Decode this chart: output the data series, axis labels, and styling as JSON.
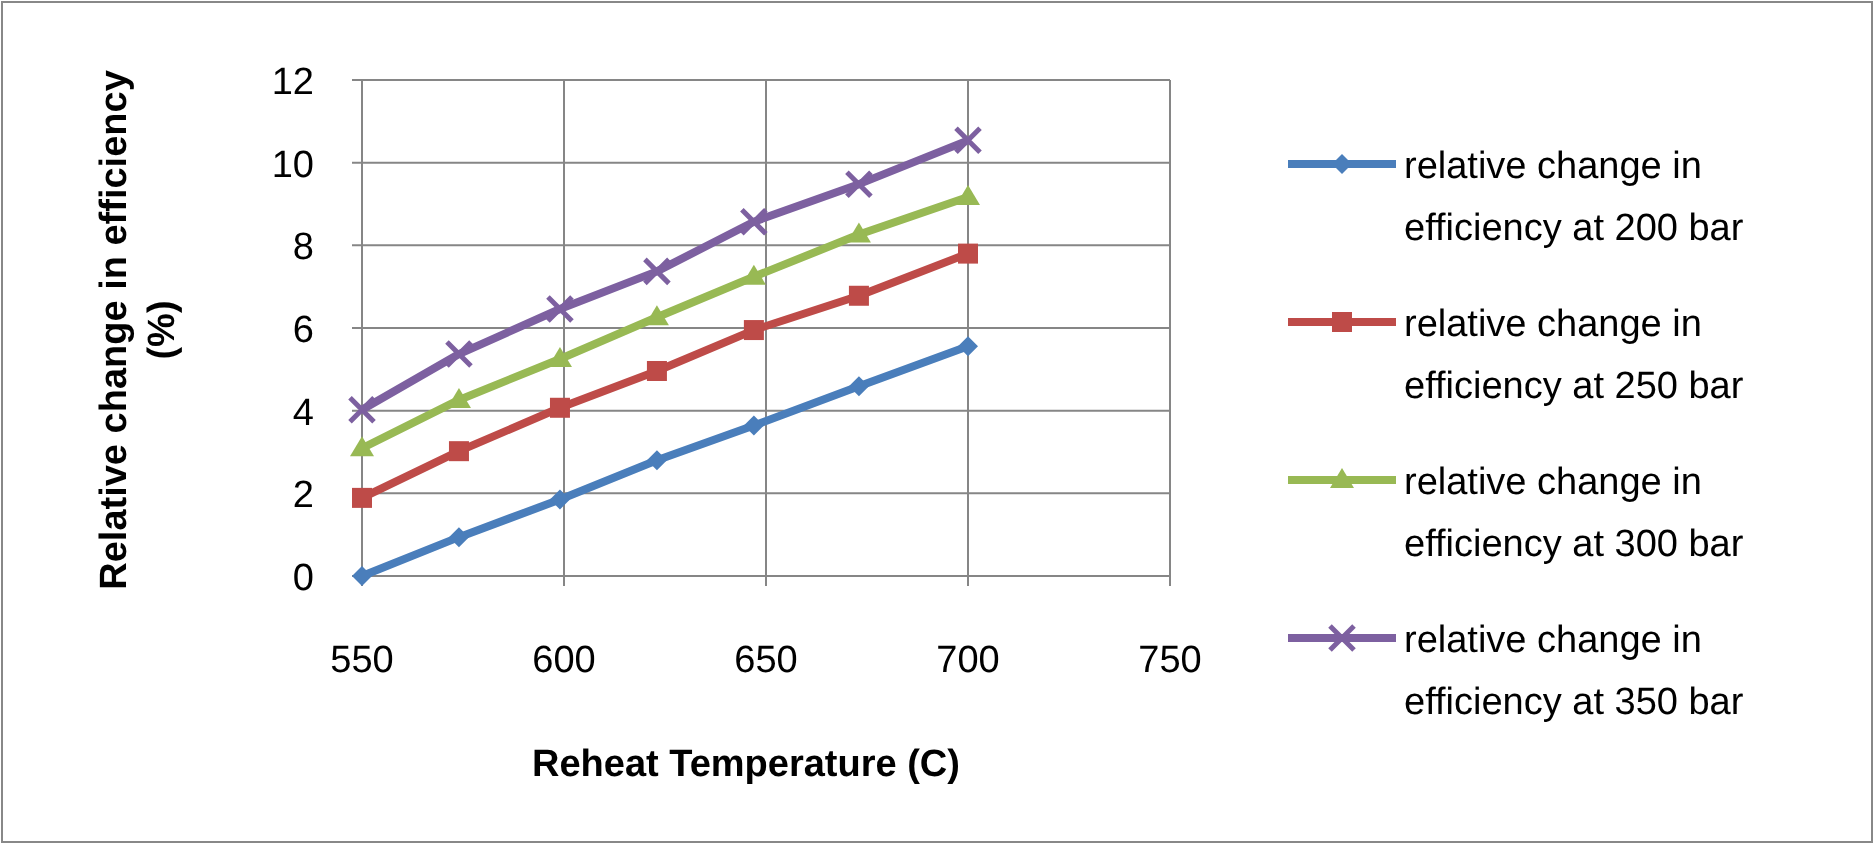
{
  "chart_data": {
    "type": "line",
    "xlabel": "Reheat Temperature (C)",
    "ylabel": "Relative change in efficiency (%)",
    "x": [
      550,
      574,
      599,
      623,
      647,
      673,
      700
    ],
    "series": [
      {
        "name": "relative change in efficiency at 200 bar",
        "color": "#4a7ebb",
        "marker": "diamond",
        "values": [
          0,
          0.94,
          1.85,
          2.8,
          3.64,
          4.59,
          5.56
        ]
      },
      {
        "name": "relative change in efficiency at 250 bar",
        "color": "#be4b48",
        "marker": "square",
        "values": [
          1.89,
          3.02,
          4.07,
          4.96,
          5.95,
          6.78,
          7.8
        ]
      },
      {
        "name": "relative change in efficiency at 300 bar",
        "color": "#98b954",
        "marker": "triangle",
        "values": [
          3.09,
          4.26,
          5.25,
          6.26,
          7.24,
          8.26,
          9.17
        ]
      },
      {
        "name": "relative change in efficiency at 350 bar",
        "color": "#7d60a0",
        "marker": "cross",
        "values": [
          4.02,
          5.37,
          6.46,
          7.37,
          8.57,
          9.48,
          10.54
        ]
      }
    ],
    "xlim": [
      550,
      750
    ],
    "xticks": [
      550,
      600,
      650,
      700,
      750
    ],
    "ylim": [
      0,
      12
    ],
    "yticks": [
      0,
      2,
      4,
      6,
      8,
      10,
      12
    ],
    "grid": true,
    "legend": "right",
    "line_style": "solid"
  }
}
